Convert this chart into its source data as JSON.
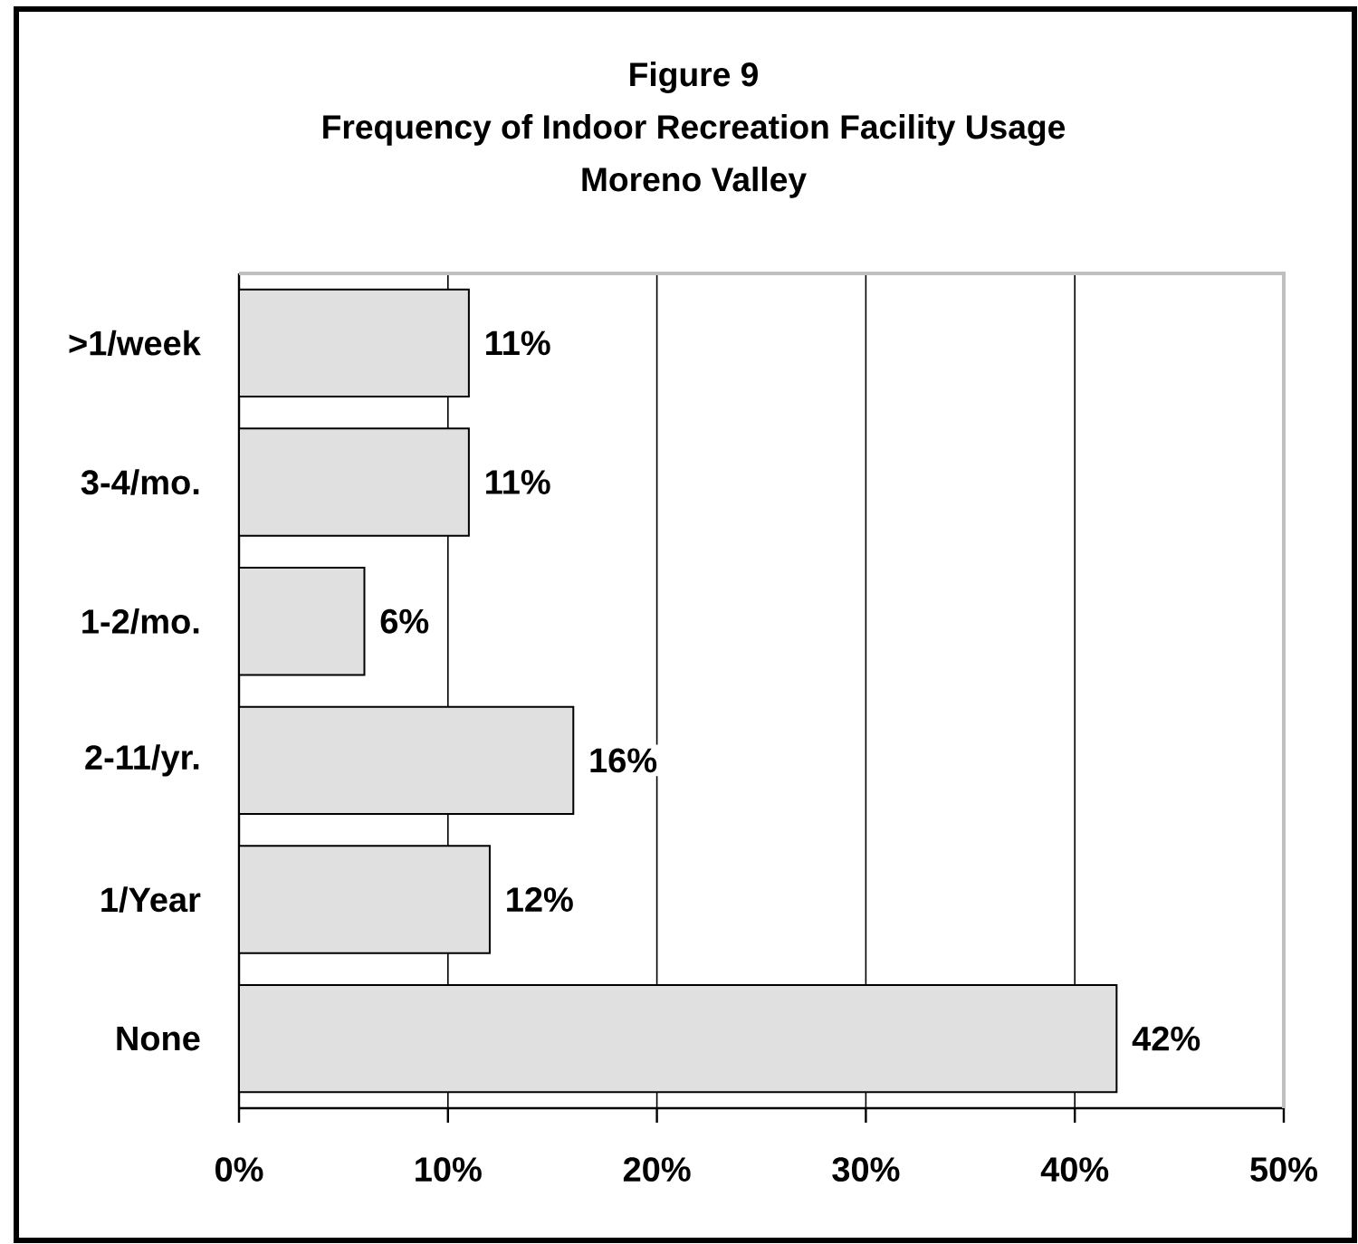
{
  "chart_data": {
    "type": "bar",
    "orientation": "horizontal",
    "title": "Figure 9",
    "subtitle": "Frequency of Indoor Recreation Facility Usage",
    "annotations": [
      "Moreno Valley"
    ],
    "categories": [
      ">1/week",
      "3-4/mo.",
      "1-2/mo.",
      "2-11/yr.",
      "1/Year",
      "None"
    ],
    "values": [
      11,
      11,
      6,
      16,
      12,
      42
    ],
    "value_labels": [
      "11%",
      "11%",
      "6%",
      "16%",
      "12%",
      "42%"
    ],
    "color": "#e0e0e0",
    "xlim": [
      0,
      50
    ],
    "xticks": [
      {
        "value": 0,
        "label": "0%"
      },
      {
        "value": 10,
        "label": "10%"
      },
      {
        "value": 20,
        "label": "20%"
      },
      {
        "value": 30,
        "label": "30%"
      },
      {
        "value": 40,
        "label": "40%"
      },
      {
        "value": 50,
        "label": "50%"
      }
    ],
    "grid": "x"
  }
}
